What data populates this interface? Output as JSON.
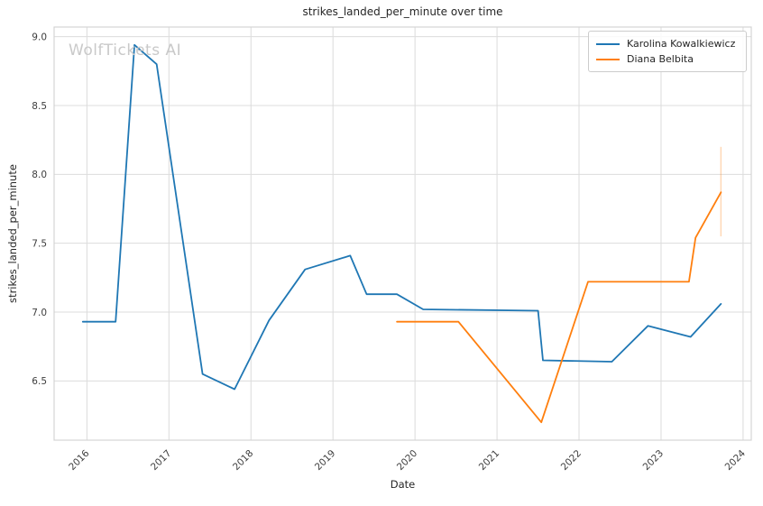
{
  "watermark": "WolfTickets AI",
  "legend": {
    "entries": [
      {
        "label": "Karolina Kowalkiewicz",
        "color": "#1f77b4"
      },
      {
        "label": "Diana Belbita",
        "color": "#ff7f0e"
      }
    ]
  },
  "chart_data": {
    "type": "line",
    "title": "strikes_landed_per_minute over time",
    "xlabel": "Date",
    "ylabel": "strikes_landed_per_minute",
    "xlim": [
      2015.6,
      2024.1
    ],
    "ylim": [
      6.07,
      9.07
    ],
    "x_ticks": [
      2016,
      2017,
      2018,
      2019,
      2020,
      2021,
      2022,
      2023,
      2024
    ],
    "y_ticks": [
      6.5,
      7.0,
      7.5,
      8.0,
      8.5,
      9.0
    ],
    "grid": true,
    "legend_position": "upper right",
    "series": [
      {
        "name": "Karolina Kowalkiewicz",
        "color": "#1f77b4",
        "x": [
          2015.95,
          2016.35,
          2016.58,
          2016.85,
          2017.41,
          2017.8,
          2018.22,
          2018.66,
          2019.21,
          2019.41,
          2019.78,
          2020.1,
          2021.5,
          2021.56,
          2022.4,
          2022.84,
          2023.36,
          2023.73
        ],
        "y": [
          6.93,
          6.93,
          8.94,
          8.8,
          6.55,
          6.44,
          6.94,
          7.31,
          7.41,
          7.13,
          7.13,
          7.02,
          7.01,
          6.65,
          6.64,
          6.9,
          6.82,
          7.06
        ]
      },
      {
        "name": "Diana Belbita",
        "color": "#ff7f0e",
        "x": [
          2019.78,
          2020.53,
          2021.54,
          2022.11,
          2023.34,
          2023.42,
          2023.73
        ],
        "y": [
          6.93,
          6.93,
          6.2,
          7.22,
          7.22,
          7.54,
          7.87
        ]
      }
    ],
    "error_bars": [
      {
        "series": "Diana Belbita",
        "x": 2023.73,
        "y_low": 7.55,
        "y_high": 8.2,
        "color": "#ff7f0e",
        "opacity": 0.3
      }
    ],
    "grid_color": "#dcdcdc",
    "spine_color": "#d4d4d4",
    "tick_label_color": "#3d3d3d"
  }
}
